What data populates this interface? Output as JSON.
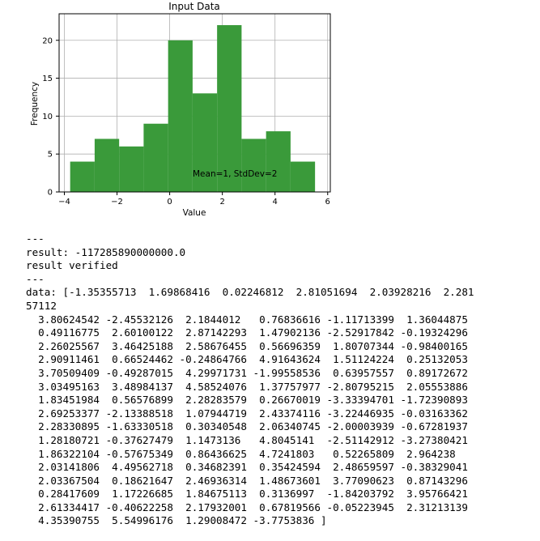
{
  "chart_data": {
    "type": "bar",
    "title": "Input Data",
    "xlabel": "Value",
    "ylabel": "Frequency",
    "annotation": "Mean=1, StdDev=2",
    "bar_color": "#3a9a3a",
    "grid": true,
    "xlim": [
      -4.2,
      6.1
    ],
    "ylim": [
      0,
      23.5
    ],
    "xticks": [
      -4,
      -2,
      0,
      2,
      4,
      6
    ],
    "yticks": [
      0,
      5,
      10,
      15,
      20
    ],
    "bin_edges": [
      -3.78,
      -2.85,
      -1.92,
      -0.99,
      -0.06,
      0.87,
      1.8,
      2.73,
      3.66,
      4.59,
      5.52
    ],
    "values": [
      4,
      7,
      6,
      9,
      20,
      13,
      22,
      7,
      8,
      4
    ]
  },
  "console": {
    "lines": [
      "---",
      "result: -117285890000000.0",
      "result verified",
      "---",
      "data: [-1.35355713  1.69868416  0.02246812  2.81051694  2.03928216  2.281",
      "57112",
      "  3.80624542 -2.45532126  2.1844012   0.76836616 -1.11713399  1.36044875",
      "  0.49116775  2.60100122  2.87142293  1.47902136 -2.52917842 -0.19324296",
      "  2.26025567  3.46425188  2.58676455  0.56696359  1.80707344 -0.98400165",
      "  2.90911461  0.66524462 -0.24864766  4.91643624  1.51124224  0.25132053",
      "  3.70509409 -0.49287015  4.29971731 -1.99558536  0.63957557  0.89172672",
      "  3.03495163  3.48984137  4.58524076  1.37757977 -2.80795215  2.05553886",
      "  1.83451984  0.56576899  2.28283579  0.26670019 -3.33394701 -1.72390893",
      "  2.69253377 -2.13388518  1.07944719  2.43374116 -3.22446935 -0.03163362",
      "  2.28330895 -1.63330518  0.30340548  2.06340745 -2.00003939 -0.67281937",
      "  1.28180721 -0.37627479  1.1473136   4.8045141  -2.51142912 -3.27380421",
      "  1.86322104 -0.57675349  0.86436625  4.7241803   0.52265809  2.964238",
      "  2.03141806  4.49562718  0.34682391  0.35424594  2.48659597 -0.38329041",
      "  2.03367504  0.18621647  2.46936314  1.48673601  3.77090623  0.87143296",
      "  0.28417609  1.17226685  1.84675113  0.3136997  -1.84203792  3.95766421",
      "  2.61334417 -0.40622258  2.17932001  0.67819566 -0.05223945  2.31213139",
      "  4.35390755  5.54996176  1.29008472 -3.7753836 ]"
    ]
  }
}
